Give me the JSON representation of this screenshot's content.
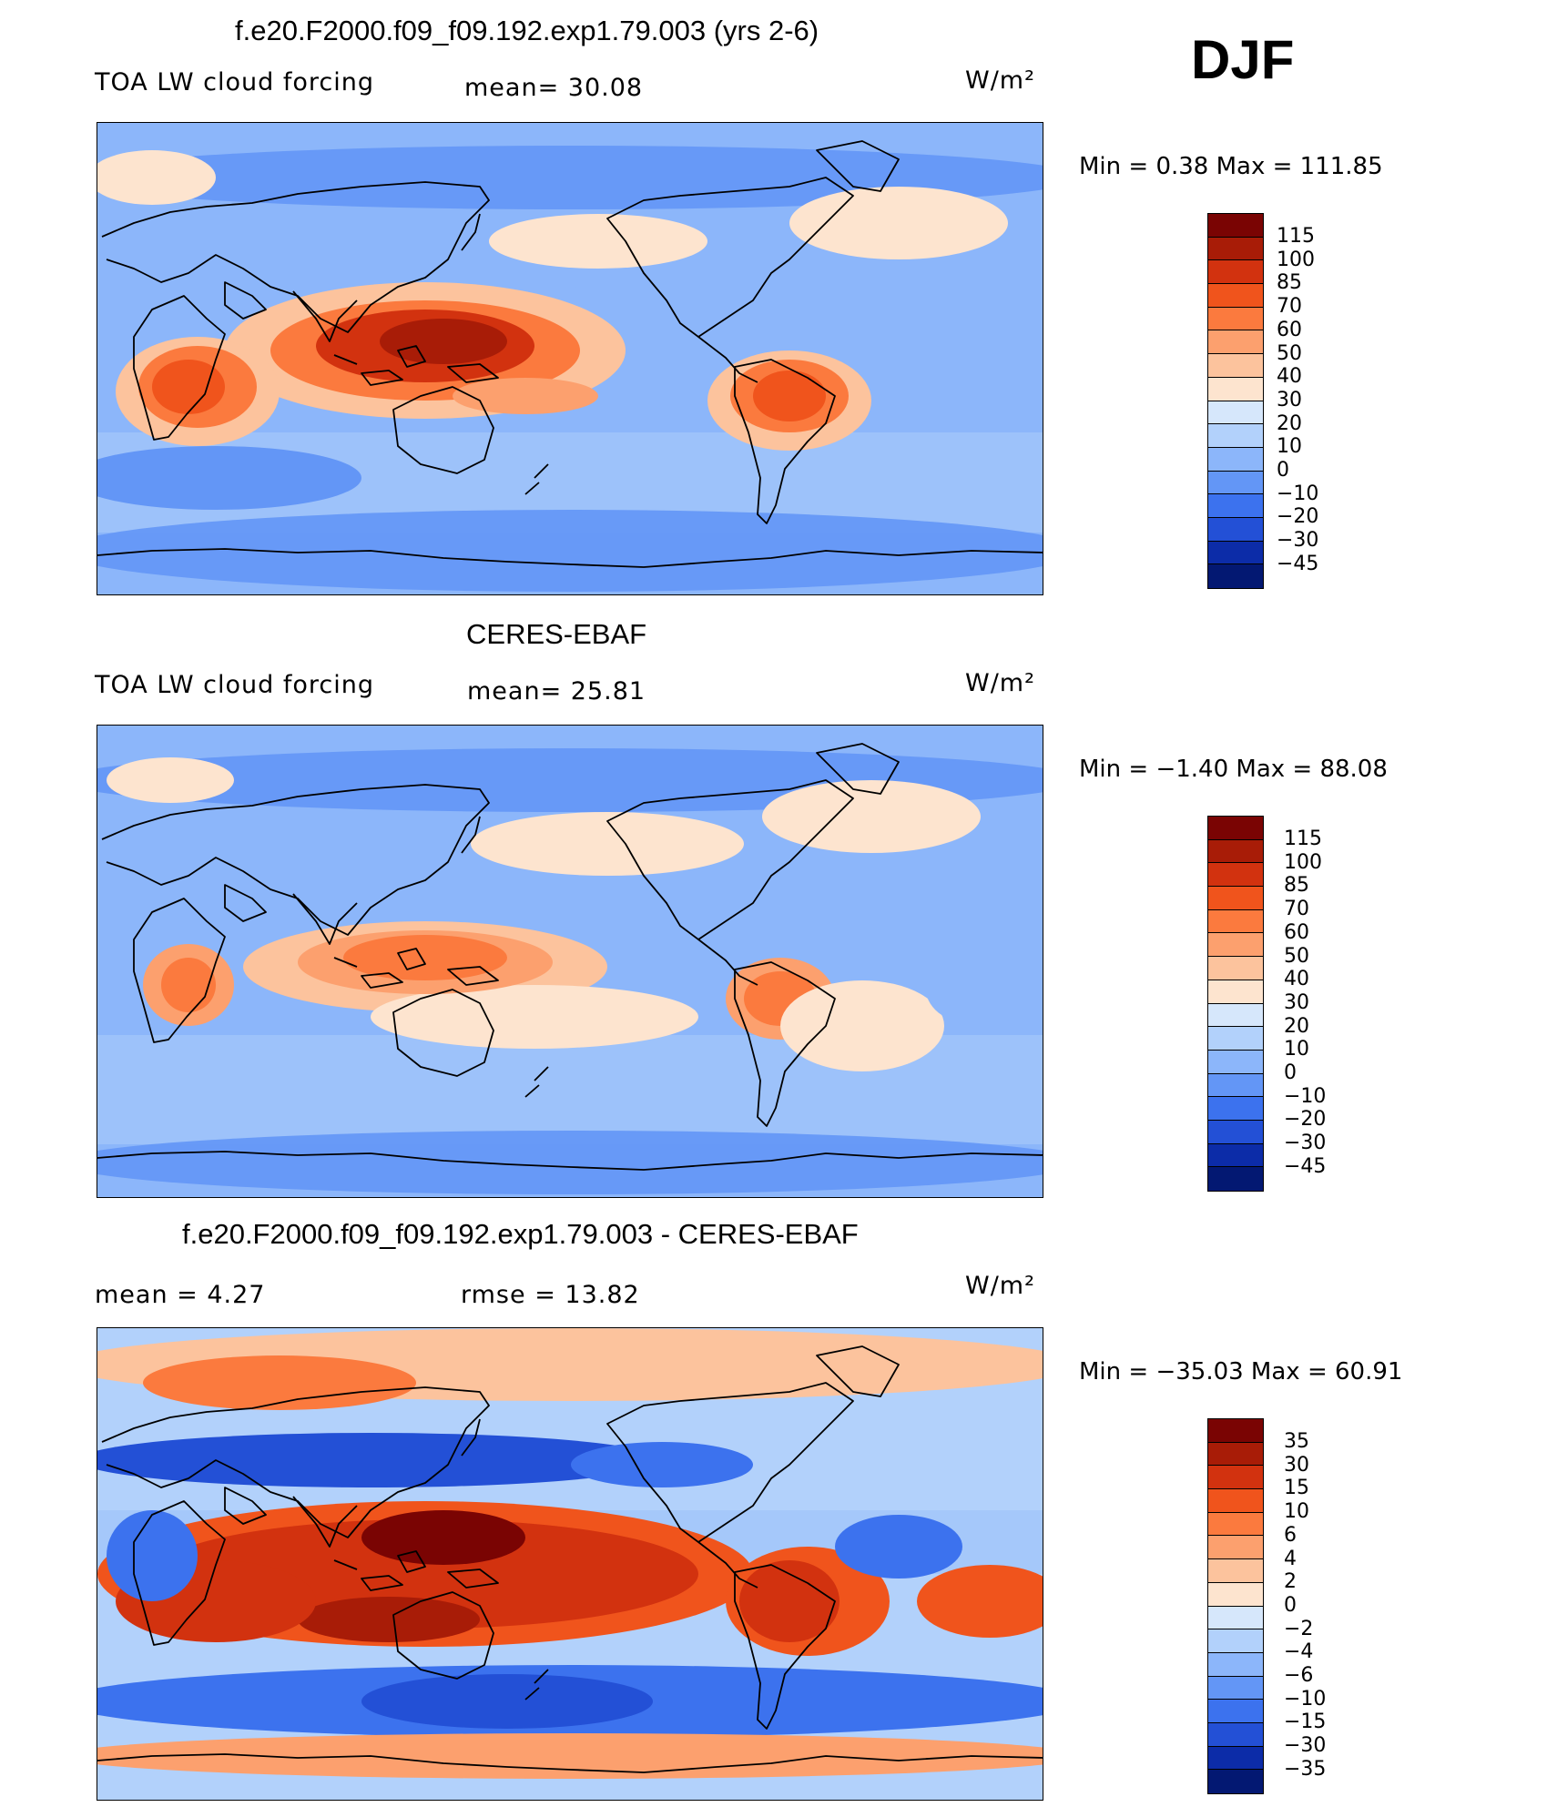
{
  "season": "DJF",
  "units": "W/m²",
  "panels": [
    {
      "title": "f.e20.F2000.f09_f09.192.exp1.79.003 (yrs 2-6)",
      "left_label": "TOA LW cloud forcing",
      "mid_label": "mean=   30.08",
      "min_max": "Min =     0.38 Max  =  111.85",
      "levels": [
        "115",
        "100",
        "85",
        "70",
        "60",
        "50",
        "40",
        "30",
        "20",
        "10",
        "0",
        "−10",
        "−20",
        "−30",
        "−45"
      ]
    },
    {
      "title": "CERES-EBAF",
      "left_label": "TOA LW cloud forcing",
      "mid_label": "mean=   25.81",
      "min_max": "Min =    −1.40 Max =    88.08",
      "levels": [
        "115",
        "100",
        "85",
        "70",
        "60",
        "50",
        "40",
        "30",
        "20",
        "10",
        "0",
        "−10",
        "−20",
        "−30",
        "−45"
      ]
    },
    {
      "title": "f.e20.F2000.f09_f09.192.exp1.79.003 - CERES-EBAF",
      "left_label": "mean  =      4.27",
      "mid_label": "rmse  =    13.82",
      "min_max": "Min = −35.03 Max =    60.91",
      "levels": [
        "35",
        "30",
        "15",
        "10",
        "6",
        "4",
        "2",
        "0",
        "−2",
        "−4",
        "−6",
        "−10",
        "−15",
        "−30",
        "−35"
      ]
    }
  ],
  "colors": {
    "scale": [
      "#7a0403",
      "#a81c07",
      "#d2320f",
      "#f0541c",
      "#fb7a3e",
      "#fca06e",
      "#fcc39d",
      "#fde4cf",
      "#d6e7fb",
      "#b2d1fb",
      "#8cb6fa",
      "#6396f6",
      "#3c72ee",
      "#2350d6",
      "#0c2ca8",
      "#031872"
    ],
    "background": "#ffffff",
    "coast": "#000000"
  }
}
